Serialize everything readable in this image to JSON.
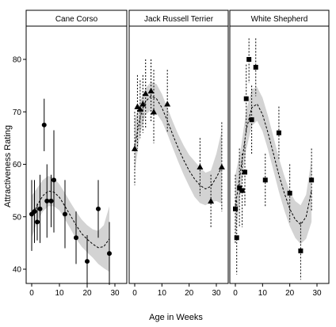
{
  "chart_data": {
    "type": "scatter",
    "ylabel": "Attractiveness Rating",
    "xlabel": "Age in Weeks",
    "xlim": [
      -2,
      30
    ],
    "ylim": [
      36,
      87
    ],
    "xticks": [
      0,
      10,
      20,
      30
    ],
    "yticks": [
      40,
      50,
      60,
      70,
      80
    ],
    "grid": false,
    "legend": "none",
    "colors": {
      "band": "#d3d3d3",
      "points": "#000000",
      "fit": "#000000",
      "strip_bg": "#ffffff"
    },
    "panels": [
      {
        "title": "Cane Corso",
        "marker": "circle",
        "points": [
          {
            "x": 0,
            "y": 50.5,
            "lo": 43.5,
            "hi": 57
          },
          {
            "x": 1,
            "y": 51,
            "lo": 45,
            "hi": 57
          },
          {
            "x": 2,
            "y": 49,
            "lo": 45.5,
            "hi": 52.5
          },
          {
            "x": 3,
            "y": 51.5,
            "lo": 45,
            "hi": 58
          },
          {
            "x": 4.5,
            "y": 67.5,
            "lo": 62.5,
            "hi": 72.5
          },
          {
            "x": 5.5,
            "y": 53,
            "lo": 46,
            "hi": 60
          },
          {
            "x": 7,
            "y": 53,
            "lo": 48,
            "hi": 58
          },
          {
            "x": 8,
            "y": 57,
            "lo": 47,
            "hi": 66.5
          },
          {
            "x": 12,
            "y": 50.5,
            "lo": 44,
            "hi": 57
          },
          {
            "x": 16,
            "y": 46,
            "lo": 41,
            "hi": 51
          },
          {
            "x": 20,
            "y": 41.5,
            "lo": 36.5,
            "hi": 46.5
          },
          {
            "x": 24,
            "y": 51.5,
            "lo": 46,
            "hi": 57
          },
          {
            "x": 28,
            "y": 43,
            "lo": 37,
            "hi": 49
          }
        ],
        "fit": [
          {
            "x": 0,
            "y": 50,
            "lo": 46,
            "hi": 54
          },
          {
            "x": 2,
            "y": 52.2,
            "lo": 49,
            "hi": 55.5
          },
          {
            "x": 4,
            "y": 54,
            "lo": 51,
            "hi": 57
          },
          {
            "x": 6,
            "y": 54.9,
            "lo": 52,
            "hi": 57.8
          },
          {
            "x": 8,
            "y": 54.7,
            "lo": 52,
            "hi": 57.4
          },
          {
            "x": 10,
            "y": 53.7,
            "lo": 51.2,
            "hi": 56.2
          },
          {
            "x": 12,
            "y": 52,
            "lo": 49.5,
            "hi": 54.5
          },
          {
            "x": 14,
            "y": 50.2,
            "lo": 47.7,
            "hi": 52.7
          },
          {
            "x": 16,
            "y": 48.4,
            "lo": 45.8,
            "hi": 51
          },
          {
            "x": 18,
            "y": 46.8,
            "lo": 44.3,
            "hi": 49.5
          },
          {
            "x": 20,
            "y": 45.7,
            "lo": 43.2,
            "hi": 48.4
          },
          {
            "x": 22,
            "y": 44.8,
            "lo": 42.2,
            "hi": 47.6
          },
          {
            "x": 24,
            "y": 44.1,
            "lo": 41,
            "hi": 47.3
          },
          {
            "x": 26,
            "y": 44.3,
            "lo": 40.2,
            "hi": 48.4
          },
          {
            "x": 28,
            "y": 45.8,
            "lo": 39.5,
            "hi": 52
          }
        ]
      },
      {
        "title": "Jack Russell Terrier",
        "marker": "triangle",
        "points": [
          {
            "x": 0,
            "y": 63,
            "lo": 56,
            "hi": 70
          },
          {
            "x": 1,
            "y": 71,
            "lo": 63,
            "hi": 77
          },
          {
            "x": 2,
            "y": 70.5,
            "lo": 65,
            "hi": 76
          },
          {
            "x": 3,
            "y": 71.5,
            "lo": 66,
            "hi": 77
          },
          {
            "x": 4,
            "y": 73.5,
            "lo": 67,
            "hi": 80
          },
          {
            "x": 6,
            "y": 74,
            "lo": 68,
            "hi": 80
          },
          {
            "x": 7,
            "y": 70,
            "lo": 64,
            "hi": 78
          },
          {
            "x": 12,
            "y": 71.5,
            "lo": 66,
            "hi": 78
          },
          {
            "x": 24,
            "y": 59.5,
            "lo": 54,
            "hi": 65
          },
          {
            "x": 28,
            "y": 53,
            "lo": 48,
            "hi": 58
          },
          {
            "x": 32,
            "y": 59.5,
            "lo": 51,
            "hi": 68
          }
        ],
        "fit": [
          {
            "x": 0,
            "y": 63.5,
            "lo": 58.5,
            "hi": 68.5
          },
          {
            "x": 2,
            "y": 69,
            "lo": 66,
            "hi": 72
          },
          {
            "x": 4,
            "y": 72,
            "lo": 69.5,
            "hi": 74.5
          },
          {
            "x": 6,
            "y": 73,
            "lo": 70.3,
            "hi": 75.7
          },
          {
            "x": 8,
            "y": 72.5,
            "lo": 69.7,
            "hi": 75.3
          },
          {
            "x": 10,
            "y": 70.8,
            "lo": 68.2,
            "hi": 73.4
          },
          {
            "x": 12,
            "y": 68.3,
            "lo": 65.8,
            "hi": 70.8
          },
          {
            "x": 14,
            "y": 65.6,
            "lo": 63.1,
            "hi": 68.1
          },
          {
            "x": 16,
            "y": 63.1,
            "lo": 60.5,
            "hi": 65.7
          },
          {
            "x": 18,
            "y": 60.8,
            "lo": 58,
            "hi": 63.6
          },
          {
            "x": 20,
            "y": 58.8,
            "lo": 55.8,
            "hi": 61.8
          },
          {
            "x": 22,
            "y": 57.2,
            "lo": 53.8,
            "hi": 60.6
          },
          {
            "x": 24,
            "y": 56,
            "lo": 52.6,
            "hi": 59.4
          },
          {
            "x": 26,
            "y": 55.3,
            "lo": 52.2,
            "hi": 58.4
          },
          {
            "x": 28,
            "y": 55.8,
            "lo": 52.8,
            "hi": 58.8
          },
          {
            "x": 30,
            "y": 57.5,
            "lo": 53,
            "hi": 62
          },
          {
            "x": 32,
            "y": 59.5,
            "lo": 52.5,
            "hi": 66.5
          }
        ]
      },
      {
        "title": "White Shepherd",
        "marker": "square",
        "points": [
          {
            "x": 0,
            "y": 51.5,
            "lo": 45,
            "hi": 58
          },
          {
            "x": 0.5,
            "y": 46,
            "lo": 39,
            "hi": 53
          },
          {
            "x": 1.5,
            "y": 55.5,
            "lo": 48,
            "hi": 63
          },
          {
            "x": 2.5,
            "y": 55,
            "lo": 48,
            "hi": 62
          },
          {
            "x": 3.5,
            "y": 58.5,
            "lo": 52,
            "hi": 64.5
          },
          {
            "x": 4,
            "y": 72.5,
            "lo": 66,
            "hi": 79
          },
          {
            "x": 5,
            "y": 80,
            "lo": 75.5,
            "hi": 84
          },
          {
            "x": 6,
            "y": 68.5,
            "lo": 62,
            "hi": 75
          },
          {
            "x": 7.5,
            "y": 78.5,
            "lo": 73,
            "hi": 84
          },
          {
            "x": 11,
            "y": 57,
            "lo": 52,
            "hi": 62
          },
          {
            "x": 16,
            "y": 66,
            "lo": 61,
            "hi": 71
          },
          {
            "x": 20,
            "y": 54.5,
            "lo": 49,
            "hi": 60
          },
          {
            "x": 24,
            "y": 43.5,
            "lo": 38,
            "hi": 49
          },
          {
            "x": 28,
            "y": 57,
            "lo": 51,
            "hi": 63
          }
        ],
        "fit": [
          {
            "x": 0,
            "y": 52,
            "lo": 46,
            "hi": 58
          },
          {
            "x": 2,
            "y": 59,
            "lo": 55,
            "hi": 63
          },
          {
            "x": 4,
            "y": 66.5,
            "lo": 62.8,
            "hi": 70.2
          },
          {
            "x": 6,
            "y": 70.8,
            "lo": 67.3,
            "hi": 74.3
          },
          {
            "x": 8,
            "y": 71.5,
            "lo": 68.3,
            "hi": 74.7
          },
          {
            "x": 10,
            "y": 69.5,
            "lo": 66.3,
            "hi": 72.7
          },
          {
            "x": 12,
            "y": 66,
            "lo": 62.8,
            "hi": 69.2
          },
          {
            "x": 14,
            "y": 62,
            "lo": 58.8,
            "hi": 65.2
          },
          {
            "x": 16,
            "y": 58,
            "lo": 54.8,
            "hi": 61.2
          },
          {
            "x": 18,
            "y": 54.5,
            "lo": 51.2,
            "hi": 57.8
          },
          {
            "x": 20,
            "y": 51.5,
            "lo": 48.2,
            "hi": 54.8
          },
          {
            "x": 22,
            "y": 49.5,
            "lo": 46,
            "hi": 53
          },
          {
            "x": 24,
            "y": 48.5,
            "lo": 44.8,
            "hi": 52.2
          },
          {
            "x": 26,
            "y": 50,
            "lo": 45.8,
            "hi": 54.2
          },
          {
            "x": 28,
            "y": 55,
            "lo": 49,
            "hi": 61
          }
        ]
      }
    ]
  }
}
